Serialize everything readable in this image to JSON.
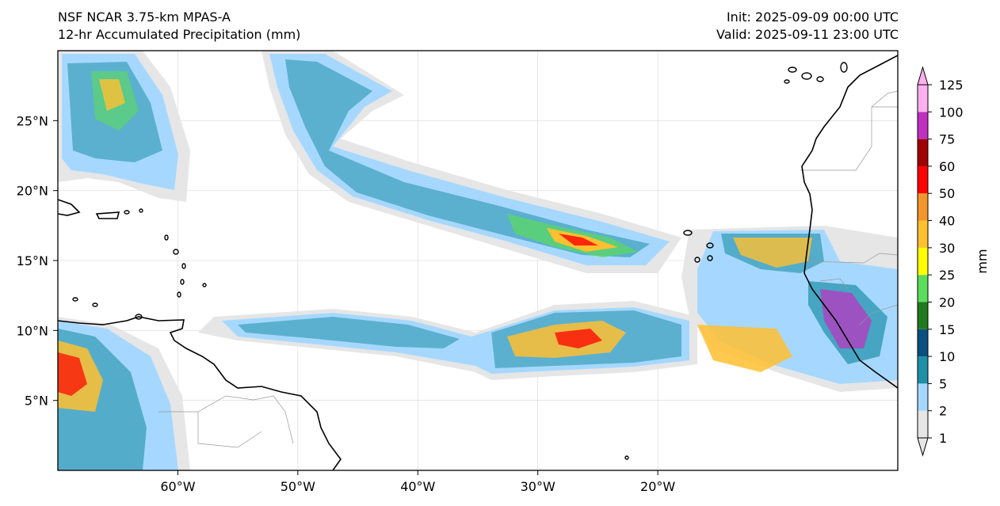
{
  "header": {
    "model": "NSF NCAR 3.75-km MPAS-A",
    "field": "12-hr Accumulated Precipitation (mm)",
    "init": "Init: 2025-09-09 00:00 UTC",
    "valid": "Valid: 2025-09-11 23:00 UTC"
  },
  "map": {
    "lon_range": [
      -70,
      0
    ],
    "lat_range": [
      0,
      30
    ],
    "lon_ticks": [
      {
        "value": -60,
        "label": "60°W"
      },
      {
        "value": -50,
        "label": "50°W"
      },
      {
        "value": -40,
        "label": "40°W"
      },
      {
        "value": -30,
        "label": "30°W"
      },
      {
        "value": -20,
        "label": "20°W"
      }
    ],
    "lat_ticks": [
      {
        "value": 25,
        "label": "25°N"
      },
      {
        "value": 20,
        "label": "20°N"
      },
      {
        "value": 15,
        "label": "15°N"
      },
      {
        "value": 10,
        "label": "10°N"
      },
      {
        "value": 5,
        "label": "5°N"
      }
    ]
  },
  "colorbar": {
    "unit_label": "mm",
    "levels": [
      {
        "value": "1",
        "color": "#e6e6e6"
      },
      {
        "value": "2",
        "color": "#a6d8ff"
      },
      {
        "value": "5",
        "color": "#1e90a8"
      },
      {
        "value": "10",
        "color": "#0a4f80"
      },
      {
        "value": "15",
        "color": "#1f7a1f"
      },
      {
        "value": "20",
        "color": "#5bdc5b"
      },
      {
        "value": "25",
        "color": "#ffff00"
      },
      {
        "value": "30",
        "color": "#ffc030"
      },
      {
        "value": "40",
        "color": "#f0962a"
      },
      {
        "value": "50",
        "color": "#ff0000"
      },
      {
        "value": "60",
        "color": "#a00000"
      },
      {
        "value": "75",
        "color": "#c030c0"
      },
      {
        "value": "100",
        "color": "#ffb0f0"
      },
      {
        "value": "125",
        "color": ""
      }
    ]
  }
}
